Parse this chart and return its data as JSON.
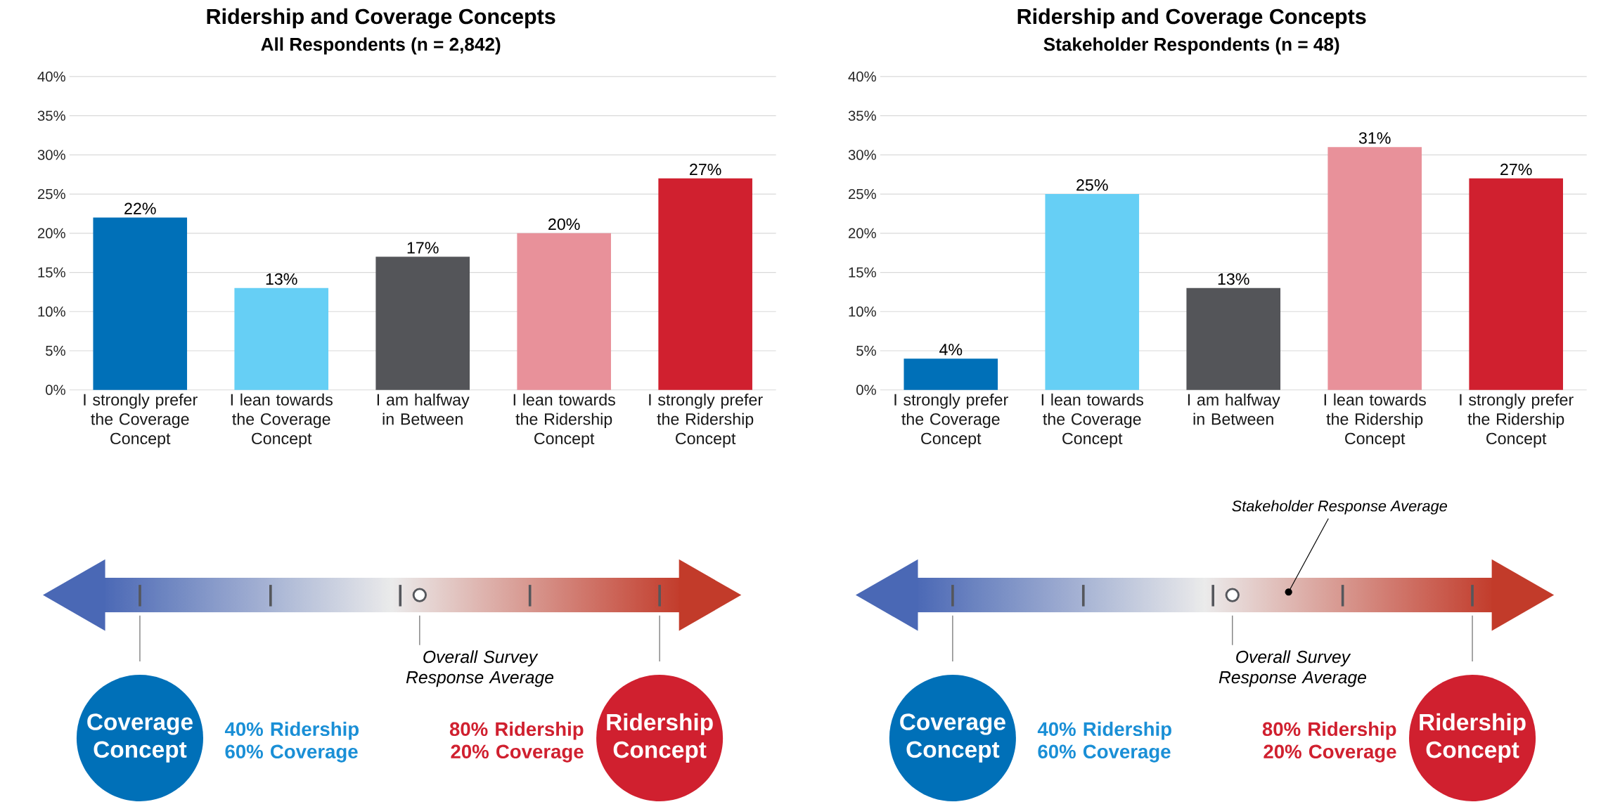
{
  "chart_data": [
    {
      "type": "bar",
      "title": "Ridership and Coverage Concepts",
      "subtitle": "All Respondents (n = 2,842)",
      "categories": [
        "I strongly prefer the Coverage Concept",
        "I lean towards the Coverage Concept",
        "I am halfway in Between",
        "I lean towards the Ridership Concept",
        "I strongly prefer the Ridership Concept"
      ],
      "values": [
        22,
        13,
        17,
        20,
        27
      ],
      "colors": [
        "#0070b8",
        "#66cff5",
        "#545559",
        "#e8919a",
        "#d0202f"
      ],
      "value_labels": [
        "22%",
        "13%",
        "17%",
        "20%",
        "27%"
      ],
      "ylim": [
        0,
        40
      ],
      "yticks": [
        {
          "value": 0,
          "label": "0%"
        },
        {
          "value": 5,
          "label": "5%"
        },
        {
          "value": 10,
          "label": "10%"
        },
        {
          "value": 15,
          "label": "15%"
        },
        {
          "value": 20,
          "label": "20%"
        },
        {
          "value": 25,
          "label": "25%"
        },
        {
          "value": 30,
          "label": "30%"
        },
        {
          "value": 35,
          "label": "35%"
        },
        {
          "value": 40,
          "label": "40%"
        }
      ],
      "grid": "y"
    },
    {
      "type": "bar",
      "title": "Ridership and Coverage Concepts",
      "subtitle": "Stakeholder Respondents (n = 48)",
      "categories": [
        "I strongly prefer the Coverage Concept",
        "I lean towards the Coverage Concept",
        "I am halfway in Between",
        "I lean towards the Ridership Concept",
        "I strongly prefer the Ridership Concept"
      ],
      "values": [
        4,
        25,
        13,
        31,
        27
      ],
      "colors": [
        "#0070b8",
        "#66cff5",
        "#545559",
        "#e8919a",
        "#d0202f"
      ],
      "value_labels": [
        "4%",
        "25%",
        "13%",
        "31%",
        "27%"
      ],
      "ylim": [
        0,
        40
      ],
      "yticks": [
        {
          "value": 0,
          "label": "0%"
        },
        {
          "value": 5,
          "label": "5%"
        },
        {
          "value": 10,
          "label": "10%"
        },
        {
          "value": 15,
          "label": "15%"
        },
        {
          "value": 20,
          "label": "20%"
        },
        {
          "value": 25,
          "label": "25%"
        },
        {
          "value": 30,
          "label": "30%"
        },
        {
          "value": 35,
          "label": "35%"
        },
        {
          "value": 40,
          "label": "40%"
        }
      ],
      "grid": "y"
    },
    {
      "type": "other",
      "annotations": [
        "Overall Survey Response Average",
        "Coverage Concept",
        "40% Ridership 60% Coverage",
        "80% Ridership 20% Coverage",
        "Ridership Concept"
      ]
    },
    {
      "type": "other",
      "annotations": [
        "Overall Survey Response Average",
        "Coverage Concept",
        "40% Ridership 60% Coverage",
        "80% Ridership 20% Coverage",
        "Ridership Concept",
        "Stakeholder Response Average"
      ]
    }
  ]
}
